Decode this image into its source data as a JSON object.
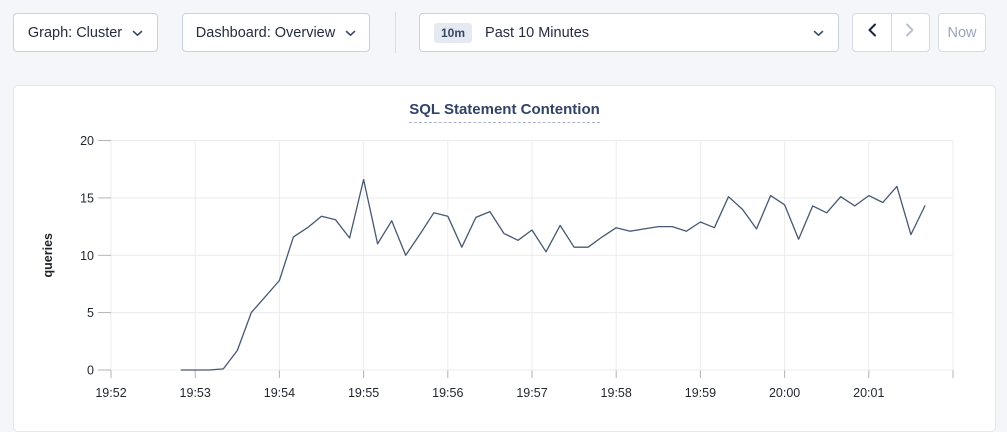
{
  "toolbar": {
    "graph_dropdown": {
      "label": "Graph: Cluster"
    },
    "dashboard_dropdown": {
      "label": "Dashboard: Overview"
    },
    "time_range": {
      "badge": "10m",
      "label": "Past 10 Minutes"
    },
    "now_button_label": "Now"
  },
  "chart": {
    "title": "SQL Statement Contention"
  },
  "chart_data": {
    "type": "line",
    "title": "SQL Statement Contention",
    "xlabel": "",
    "ylabel": "queries",
    "ylim": [
      0,
      20
    ],
    "y_ticks": [
      0,
      5,
      10,
      15,
      20
    ],
    "x_ticks": [
      "19:52",
      "19:53",
      "19:54",
      "19:55",
      "19:56",
      "19:57",
      "19:58",
      "19:59",
      "20:00",
      "20:01"
    ],
    "x_axis_total_minutes": 10,
    "grid": true,
    "legend_position": "none",
    "line_color": "#475872",
    "grid_color": "#ececec",
    "tick_color": "#b3b3b3",
    "series": [
      {
        "name": "queries",
        "start_time": "19:52:50",
        "interval_seconds": 10,
        "values": [
          0,
          0,
          0,
          0.1,
          1.7,
          5,
          6.4,
          7.8,
          11.6,
          12.4,
          13.4,
          13.1,
          11.5,
          16.6,
          11,
          13,
          10,
          11.8,
          13.7,
          13.4,
          10.7,
          13.3,
          13.8,
          11.9,
          11.3,
          12.2,
          10.3,
          12.6,
          10.7,
          10.7,
          11.6,
          12.4,
          12.1,
          12.3,
          12.5,
          12.5,
          12.1,
          12.9,
          12.4,
          15.1,
          14,
          12.3,
          15.2,
          14.4,
          11.4,
          14.3,
          13.7,
          15.1,
          14.3,
          15.2,
          14.6,
          16,
          11.8,
          14.3
        ]
      }
    ]
  }
}
